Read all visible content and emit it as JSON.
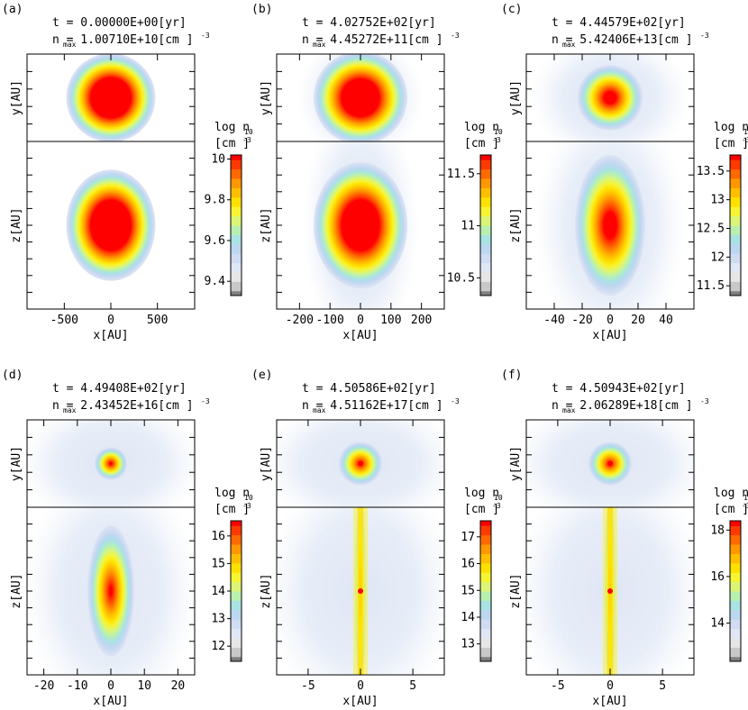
{
  "panels": [
    {
      "label": "(a)",
      "t_text": "t   =  0.00000E+00[yr]",
      "n_text": "n    = 1.00710E+10[cm ]",
      "xticks": [
        "-500",
        "0",
        "500"
      ],
      "xvals": [
        -500,
        0,
        500
      ],
      "xrange": [
        -900,
        900
      ],
      "cticks": [
        "10",
        "9.8",
        "9.6",
        "9.4"
      ],
      "cvals": [
        10,
        9.8,
        9.6,
        9.4
      ],
      "crange": [
        9.33,
        10.02
      ],
      "shape": {
        "yr": 0.95,
        "zr": 0.95,
        "zstretch": 1.25,
        "core": 0.45,
        "haze": 0.0,
        "filament": 0
      }
    },
    {
      "label": "(b)",
      "t_text": "t   =  4.02752E+02[yr]",
      "n_text": "n    = 4.45272E+11[cm ]",
      "xticks": [
        "-200",
        "-100",
        "0",
        "100",
        "200"
      ],
      "xvals": [
        -200,
        -100,
        0,
        100,
        200
      ],
      "xrange": [
        -275,
        275
      ],
      "cticks": [
        "11.5",
        "11",
        "10.5"
      ],
      "cvals": [
        11.5,
        11,
        10.5
      ],
      "crange": [
        10.33,
        11.68
      ],
      "shape": {
        "yr": 1.0,
        "zr": 1.0,
        "zstretch": 1.35,
        "core": 0.4,
        "haze": 0.15,
        "filament": 0
      }
    },
    {
      "label": "(c)",
      "t_text": "t   =  4.44579E+02[yr]",
      "n_text": "n    = 5.42406E+13[cm ]",
      "xticks": [
        "-40",
        "-20",
        "0",
        "20",
        "40"
      ],
      "xvals": [
        -40,
        -20,
        0,
        20,
        40
      ],
      "xrange": [
        -60,
        60
      ],
      "cticks": [
        "13.5",
        "13",
        "12.5",
        "12",
        "11.5"
      ],
      "cvals": [
        13.5,
        13,
        12.5,
        12,
        11.5
      ],
      "crange": [
        11.33,
        13.78
      ],
      "shape": {
        "yr": 0.7,
        "zr": 0.75,
        "zstretch": 2.0,
        "core": 0.18,
        "haze": 0.35,
        "filament": 0
      }
    },
    {
      "label": "(d)",
      "t_text": "t   =  4.49408E+02[yr]",
      "n_text": "n    = 2.43452E+16[cm ]",
      "xticks": [
        "-20",
        "-10",
        "0",
        "10",
        "20"
      ],
      "xvals": [
        -20,
        -10,
        0,
        10,
        20
      ],
      "xrange": [
        -25,
        25
      ],
      "cticks": [
        "16",
        "15",
        "14",
        "13",
        "12"
      ],
      "cvals": [
        16,
        15,
        14,
        13,
        12
      ],
      "crange": [
        11.45,
        16.55
      ],
      "shape": {
        "yr": 0.35,
        "zr": 0.5,
        "zstretch": 2.8,
        "core": 0.06,
        "haze": 0.5,
        "filament": 0
      }
    },
    {
      "label": "(e)",
      "t_text": "t   =  4.50586E+02[yr]",
      "n_text": "n    = 4.51162E+17[cm ]",
      "xticks": [
        "-5",
        "0",
        "5"
      ],
      "xvals": [
        -5,
        0,
        5
      ],
      "xrange": [
        -8,
        8
      ],
      "cticks": [
        "17",
        "16",
        "15",
        "14",
        "13"
      ],
      "cvals": [
        17,
        16,
        15,
        14,
        13
      ],
      "crange": [
        12.35,
        17.6
      ],
      "shape": {
        "yr": 0.25,
        "zr": 0.12,
        "zstretch": 9.0,
        "core": 0.04,
        "haze": 0.6,
        "filament": 1
      }
    },
    {
      "label": "(f)",
      "t_text": "t   =  4.50943E+02[yr]",
      "n_text": "n    = 2.06289E+18[cm ]",
      "xticks": [
        "-5",
        "0",
        "5"
      ],
      "xvals": [
        -5,
        0,
        5
      ],
      "xrange": [
        -8,
        8
      ],
      "cticks": [
        "18",
        "16",
        "14"
      ],
      "cvals": [
        18,
        16,
        14
      ],
      "crange": [
        12.35,
        18.4
      ],
      "shape": {
        "yr": 0.25,
        "zr": 0.1,
        "zstretch": 11.0,
        "core": 0.035,
        "haze": 0.6,
        "filament": 1
      }
    }
  ],
  "common": {
    "y_label": "y[AU]",
    "z_label": "z[AU]",
    "x_label": "x[AU]",
    "cbar_label": "log  n",
    "cbar_sub": "10",
    "cbar_unit": "[cm  ]",
    "n_sub": "max",
    "exp": "-3"
  },
  "colors": {
    "cmap": [
      "#7f7f7f",
      "#c8c8c8",
      "#e6e6e6",
      "#dfe6f4",
      "#cfdcf2",
      "#bcd7f0",
      "#a9e3e3",
      "#b9f0b0",
      "#dcf576",
      "#f7f433",
      "#ffe100",
      "#ffbf00",
      "#ff9800",
      "#ff6a00",
      "#ff3a00",
      "#ff0000"
    ]
  }
}
